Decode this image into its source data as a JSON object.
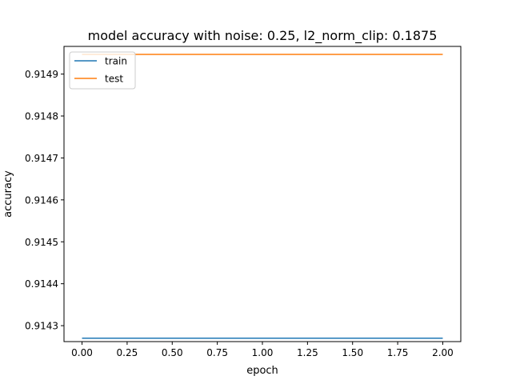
{
  "chart_data": {
    "type": "line",
    "title": "model accuracy with noise: 0.25, l2_norm_clip: 0.1875",
    "xlabel": "epoch",
    "ylabel": "accuracy",
    "xlim": [
      -0.1,
      2.1
    ],
    "ylim": [
      0.914262,
      0.914966
    ],
    "xticks": [
      0.0,
      0.25,
      0.5,
      0.75,
      1.0,
      1.25,
      1.5,
      1.75,
      2.0
    ],
    "xtick_labels": [
      "0.00",
      "0.25",
      "0.50",
      "0.75",
      "1.00",
      "1.25",
      "1.50",
      "1.75",
      "2.00"
    ],
    "yticks": [
      0.9143,
      0.9144,
      0.9145,
      0.9146,
      0.9147,
      0.9148,
      0.9149
    ],
    "ytick_labels": [
      "0.9143",
      "0.9144",
      "0.9145",
      "0.9146",
      "0.9147",
      "0.9148",
      "0.9149"
    ],
    "grid": false,
    "legend_position": "upper-left",
    "series": [
      {
        "name": "train",
        "color": "#1f77b4",
        "x": [
          0,
          1,
          2
        ],
        "values": [
          0.91427,
          0.91427,
          0.91427
        ]
      },
      {
        "name": "test",
        "color": "#ff7f0e",
        "x": [
          0,
          1,
          2
        ],
        "values": [
          0.914947,
          0.914947,
          0.914947
        ]
      }
    ]
  }
}
